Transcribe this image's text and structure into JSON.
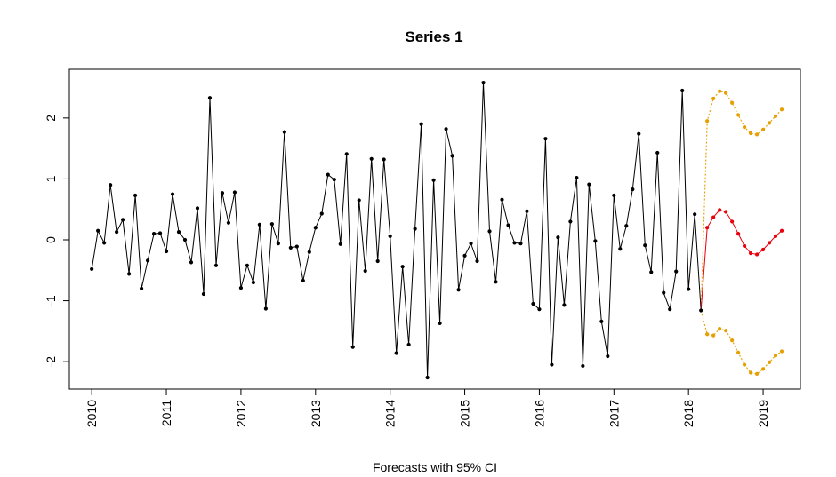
{
  "chart_data": {
    "type": "line",
    "title": "Series 1",
    "xlabel": "Forecasts with 95% CI",
    "ylabel": "",
    "x_ticks": [
      "2010",
      "2011",
      "2012",
      "2013",
      "2014",
      "2015",
      "2016",
      "2017",
      "2018",
      "2019"
    ],
    "y_ticks": [
      "-2",
      "-1",
      "0",
      "1",
      "2"
    ],
    "xlim": [
      2009.7,
      2019.5
    ],
    "ylim": [
      -2.45,
      2.8
    ],
    "grid": false,
    "legend": "none",
    "colors": {
      "observed": "#000000",
      "forecast": "#e8000b",
      "interval": "#e69f00"
    },
    "series": [
      {
        "key": "observed",
        "start": 2010.0,
        "frequency": 12,
        "values": [
          -0.48,
          0.15,
          -0.05,
          0.9,
          0.13,
          0.33,
          -0.56,
          0.73,
          -0.8,
          -0.34,
          0.1,
          0.11,
          -0.19,
          0.75,
          0.13,
          0.0,
          -0.37,
          0.52,
          -0.89,
          2.33,
          -0.42,
          0.77,
          0.28,
          0.78,
          -0.79,
          -0.42,
          -0.7,
          0.25,
          -1.13,
          0.26,
          -0.06,
          1.77,
          -0.13,
          -0.11,
          -0.67,
          -0.2,
          0.2,
          0.43,
          1.07,
          0.99,
          -0.07,
          1.41,
          -1.76,
          0.65,
          -0.51,
          1.33,
          -0.35,
          1.32,
          0.06,
          -1.86,
          -0.44,
          -1.72,
          0.18,
          1.9,
          -2.26,
          0.98,
          -1.37,
          1.82,
          1.38,
          -0.82,
          -0.26,
          -0.06,
          -0.35,
          2.58,
          0.14,
          -0.69,
          0.66,
          0.24,
          -0.05,
          -0.06,
          0.47,
          -1.05,
          -1.14,
          1.66,
          -2.05,
          0.04,
          -1.07,
          0.3,
          1.02,
          -2.07,
          0.91,
          -0.02,
          -1.34,
          -1.91,
          0.73,
          -0.15,
          0.23,
          0.83,
          1.74,
          -0.09,
          -0.53,
          1.43,
          -0.87,
          -1.14,
          -0.52,
          2.45,
          -0.81,
          0.42,
          -1.16
        ]
      },
      {
        "key": "forecast",
        "start": 2018.25,
        "frequency": 12,
        "values": [
          0.2,
          0.37,
          0.49,
          0.46,
          0.3,
          0.1,
          -0.1,
          -0.22,
          -0.24,
          -0.16,
          -0.05,
          0.06,
          0.15
        ]
      },
      {
        "key": "upper",
        "start": 2018.25,
        "frequency": 12,
        "values": [
          1.95,
          2.32,
          2.44,
          2.41,
          2.25,
          2.05,
          1.85,
          1.75,
          1.73,
          1.81,
          1.92,
          2.03,
          2.14
        ]
      },
      {
        "key": "lower",
        "start": 2018.25,
        "frequency": 12,
        "values": [
          -1.55,
          -1.57,
          -1.46,
          -1.49,
          -1.65,
          -1.85,
          -2.05,
          -2.18,
          -2.2,
          -2.12,
          -2.01,
          -1.9,
          -1.83
        ]
      }
    ]
  }
}
